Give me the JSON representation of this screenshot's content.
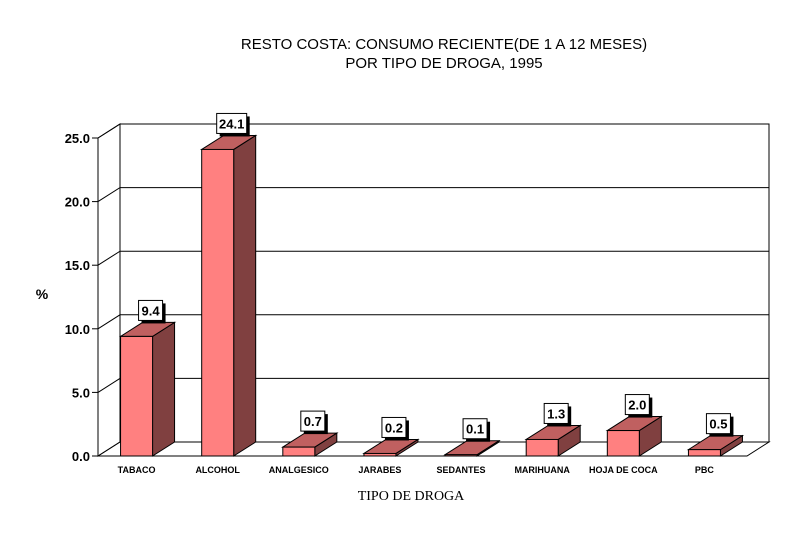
{
  "chart_data": {
    "type": "bar",
    "title_line1": "RESTO COSTA: CONSUMO RECIENTE(DE 1 A 12 MESES)",
    "title_line2": "POR TIPO DE DROGA, 1995",
    "xlabel": "TIPO DE DROGA",
    "ylabel": "%",
    "categories": [
      "TABACO",
      "ALCOHOL",
      "ANALGESICO",
      "JARABES",
      "SEDANTES",
      "MARIHUANA",
      "HOJA DE COCA",
      "PBC"
    ],
    "values": [
      9.4,
      24.1,
      0.7,
      0.2,
      0.1,
      1.3,
      2.0,
      0.5
    ],
    "value_labels": [
      "9.4",
      "24.1",
      "0.7",
      "0.2",
      "0.1",
      "1.3",
      "2.0",
      "0.5"
    ],
    "ylim": [
      0,
      25
    ],
    "yticks": [
      "0.0",
      "5.0",
      "10.0",
      "15.0",
      "20.0",
      "25.0"
    ],
    "grid": true,
    "legend": "none",
    "colors": {
      "bar_front": "#ff8080",
      "bar_side": "#804040",
      "bar_top": "#c06060",
      "grid": "#000000"
    }
  }
}
